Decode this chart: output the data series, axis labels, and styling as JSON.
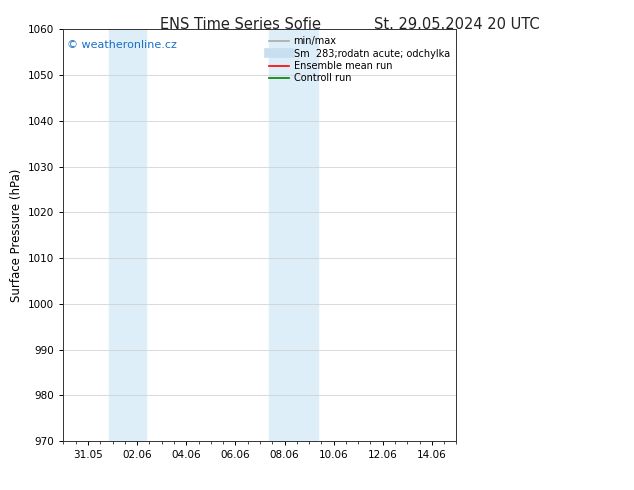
{
  "title_left": "ENS Time Series Sofie",
  "title_right": "St. 29.05.2024 20 UTC",
  "ylabel": "Surface Pressure (hPa)",
  "ylim": [
    970,
    1060
  ],
  "yticks": [
    970,
    980,
    990,
    1000,
    1010,
    1020,
    1030,
    1040,
    1050,
    1060
  ],
  "xtick_labels": [
    "31.05",
    "02.06",
    "04.06",
    "06.06",
    "08.06",
    "10.06",
    "12.06",
    "14.06"
  ],
  "xtick_positions": [
    1.0,
    3.0,
    5.0,
    7.0,
    9.0,
    11.0,
    13.0,
    15.0
  ],
  "xlim": [
    0.0,
    16.0
  ],
  "shaded_regions": [
    {
      "x_start": 1.85,
      "x_end": 3.35,
      "color": "#ddeef8"
    },
    {
      "x_start": 8.35,
      "x_end": 10.35,
      "color": "#ddeef8"
    }
  ],
  "watermark_text": "© weatheronline.cz",
  "watermark_color": "#1a6fc4",
  "legend_entries": [
    {
      "label": "min/max",
      "color": "#aaaaaa",
      "lw": 1.2,
      "ls": "-"
    },
    {
      "label": "Sm  283;rodatn acute; odchylka",
      "color": "#c8dff0",
      "lw": 7,
      "ls": "-"
    },
    {
      "label": "Ensemble mean run",
      "color": "red",
      "lw": 1.2,
      "ls": "-"
    },
    {
      "label": "Controll run",
      "color": "green",
      "lw": 1.2,
      "ls": "-"
    }
  ],
  "bg_color": "#ffffff",
  "plot_bg_color": "#ffffff",
  "grid_color": "#cccccc",
  "title_fontsize": 10.5,
  "ylabel_fontsize": 8.5,
  "tick_fontsize": 7.5,
  "legend_fontsize": 7.0,
  "watermark_fontsize": 8.0
}
